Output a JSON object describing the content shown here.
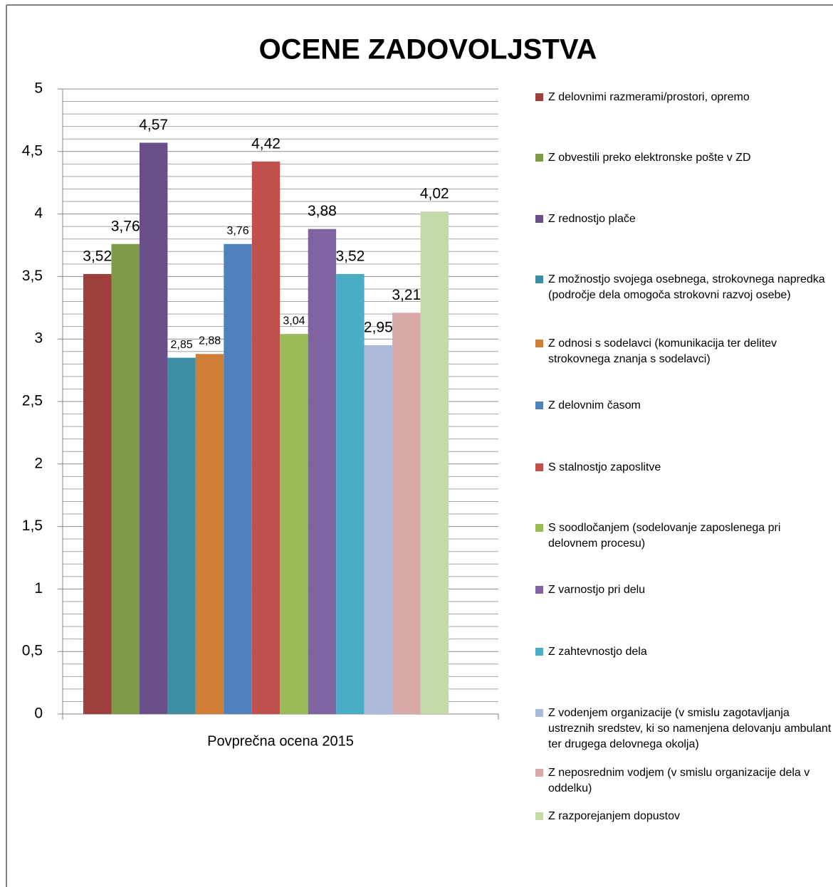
{
  "chart_data": {
    "type": "bar",
    "title": "OCENE ZADOVOLJSTVA",
    "categories": [
      "Povprečna ocena 2015"
    ],
    "ylim": [
      0,
      5
    ],
    "yticks": [
      0,
      {
        "value": 0.5,
        "label": "0,5"
      },
      1,
      {
        "value": 1.5,
        "label": "1,5"
      },
      2,
      {
        "value": 2.5,
        "label": "2,5"
      },
      3,
      {
        "value": 3.5,
        "label": "3,5"
      },
      4,
      {
        "value": 4.5,
        "label": "4,5"
      },
      5
    ],
    "minor_yticks": [
      0.1,
      0.2,
      0.3,
      0.4,
      0.6,
      0.7,
      0.8,
      0.9,
      1.1,
      1.2,
      1.3,
      1.4,
      1.6,
      1.7,
      1.8,
      1.9,
      2.1,
      2.2,
      2.3,
      2.4,
      2.6,
      2.7,
      2.8,
      2.9,
      3.1,
      3.2,
      3.3,
      3.4,
      3.6,
      3.7,
      3.8,
      3.9,
      4.1,
      4.2,
      4.3,
      4.4,
      4.6,
      4.7,
      4.8,
      4.9
    ],
    "grid": true,
    "legend": "right",
    "series": [
      {
        "name": "Z delovnimi razmerami/prostori, opremo",
        "color": "#9e3f3e",
        "values": [
          3.52
        ],
        "value_labels": [
          "3,52"
        ]
      },
      {
        "name": "Z obvestili preko elektronske pošte v ZD",
        "color": "#7e9a47",
        "values": [
          3.76
        ],
        "value_labels": [
          "3,76"
        ]
      },
      {
        "name": "Z rednostjo  plače",
        "color": "#6a4e8a",
        "values": [
          4.57
        ],
        "value_labels": [
          "4,57"
        ]
      },
      {
        "name": "Z možnostjo svojega osebnega, strokovnega napredka (področje dela omogoča strokovni razvoj osebe)",
        "color": "#3d8ea4",
        "values": [
          2.85
        ],
        "value_labels": [
          "2,85"
        ]
      },
      {
        "name": "Z odnosi s sodelavci (komunikacija ter delitev strokovnega znanja s  sodelavci)",
        "color": "#d07d35",
        "values": [
          2.88
        ],
        "value_labels": [
          "2,88"
        ]
      },
      {
        "name": "Z delovnim časom",
        "color": "#4f81bd",
        "values": [
          3.76
        ],
        "value_labels": [
          "3,76"
        ]
      },
      {
        "name": "S stalnostjo zaposlitve",
        "color": "#c0504d",
        "values": [
          4.42
        ],
        "value_labels": [
          "4,42"
        ]
      },
      {
        "name": "S soodločanjem (sodelovanje zaposlenega pri delovnem procesu)",
        "color": "#9bbb59",
        "values": [
          3.04
        ],
        "value_labels": [
          "3,04"
        ]
      },
      {
        "name": "Z varnostjo pri delu",
        "color": "#8064a2",
        "values": [
          3.88
        ],
        "value_labels": [
          "3,88"
        ]
      },
      {
        "name": "Z zahtevnostjo dela",
        "color": "#4bacc6",
        "values": [
          3.52
        ],
        "value_labels": [
          "3,52"
        ]
      },
      {
        "name": "Z vodenjem organizacije (v smislu zagotavljanja ustreznih sredstev, ki so namenjena delovanju ambulant ter drugega delovnega okolja)",
        "color": "#abbadb",
        "values": [
          2.95
        ],
        "value_labels": [
          "2,95"
        ]
      },
      {
        "name": "Z neposrednim vodjem (v smislu organizacije dela v oddelku)",
        "color": "#d9aaaa",
        "values": [
          3.21
        ],
        "value_labels": [
          "3,21"
        ]
      },
      {
        "name": "Z razporejanjem dopustov",
        "color": "#c6d9a8",
        "values": [
          4.02
        ],
        "value_labels": [
          "4,02"
        ]
      }
    ]
  }
}
